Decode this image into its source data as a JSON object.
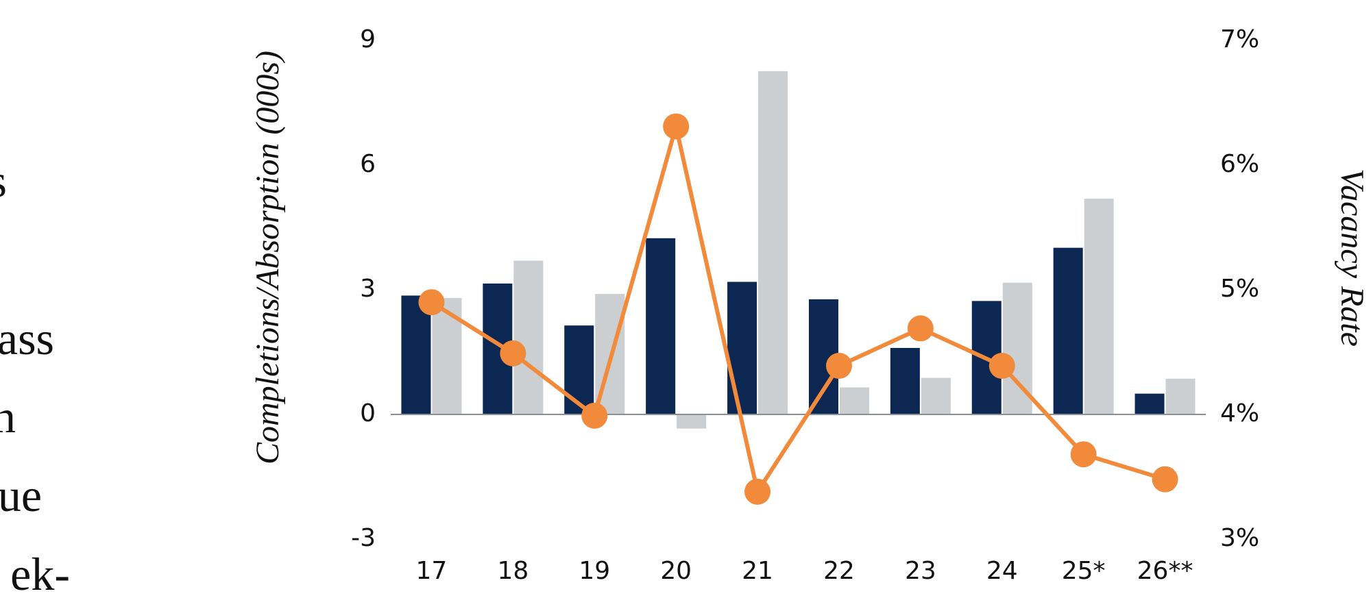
{
  "chart_data": {
    "type": "bar-line",
    "y_label": "Completions/Absorption (000s)",
    "y2_label": "Vacancy Rate",
    "clipped_text": [
      "s",
      "ass",
      "n",
      "ue",
      "ek-"
    ],
    "categories": [
      "17",
      "18",
      "19",
      "20",
      "21",
      "22",
      "23",
      "24",
      "25*",
      "26**"
    ],
    "series": [
      {
        "type": "bar",
        "color": "#0c2752",
        "values": [
          2.86,
          3.15,
          2.14,
          4.24,
          3.19,
          2.77,
          1.6,
          2.73,
          4.01,
          0.5
        ]
      },
      {
        "type": "bar",
        "color": "#cbcfd2",
        "values": [
          2.8,
          3.7,
          2.9,
          -0.34,
          8.26,
          0.65,
          0.88,
          3.17,
          5.19,
          0.86
        ]
      },
      {
        "type": "line",
        "axis": "y2",
        "color": "#f28a3c",
        "values": [
          4.9,
          4.49,
          3.99,
          6.31,
          3.38,
          4.39,
          4.69,
          4.39,
          3.68,
          3.48
        ]
      }
    ],
    "ylim": [
      -3,
      9
    ],
    "yticks": [
      -3,
      0,
      3,
      6,
      9
    ],
    "y2lim": [
      3,
      7
    ],
    "y2ticks": [
      {
        "value": 3,
        "label": "3%"
      },
      {
        "value": 4,
        "label": "4%"
      },
      {
        "value": 5,
        "label": "5%"
      },
      {
        "value": 6,
        "label": "6%"
      },
      {
        "value": 7,
        "label": "7%"
      }
    ]
  }
}
